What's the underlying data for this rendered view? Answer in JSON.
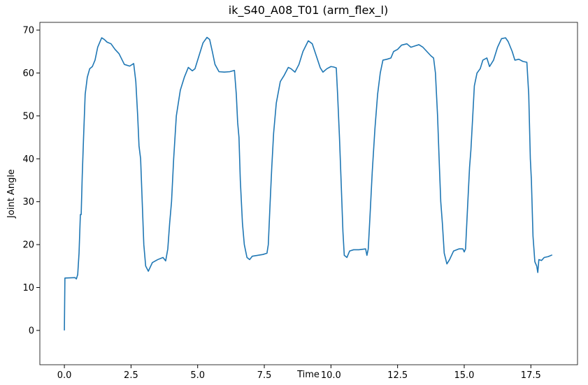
{
  "chart_data": {
    "type": "line",
    "title": "ik_S40_A08_T01 (arm_flex_l)",
    "x_label": "Time",
    "y_label": "Joint Angle",
    "x": [
      0,
      0.02,
      0.4,
      0.45,
      0.5,
      0.55,
      0.6,
      0.63,
      0.67,
      0.72,
      0.78,
      0.86,
      0.95,
      1.05,
      1.15,
      1.25,
      1.4,
      1.5,
      1.6,
      1.75,
      1.9,
      2.05,
      2.25,
      2.45,
      2.6,
      2.68,
      2.75,
      2.8,
      2.86,
      2.92,
      2.98,
      3.05,
      3.15,
      3.3,
      3.5,
      3.7,
      3.8,
      3.88,
      3.95,
      4.02,
      4.1,
      4.2,
      4.35,
      4.5,
      4.65,
      4.8,
      4.9,
      5.05,
      5.2,
      5.35,
      5.45,
      5.55,
      5.65,
      5.8,
      6.0,
      6.2,
      6.38,
      6.45,
      6.5,
      6.55,
      6.6,
      6.68,
      6.75,
      6.85,
      6.95,
      7.05,
      7.25,
      7.45,
      7.6,
      7.65,
      7.72,
      7.78,
      7.85,
      7.95,
      8.1,
      8.25,
      8.4,
      8.5,
      8.65,
      8.8,
      8.95,
      9.15,
      9.3,
      9.45,
      9.6,
      9.7,
      9.85,
      10.0,
      10.1,
      10.2,
      10.25,
      10.32,
      10.38,
      10.45,
      10.5,
      10.6,
      10.7,
      10.85,
      11.05,
      11.3,
      11.35,
      11.4,
      11.46,
      11.55,
      11.65,
      11.75,
      11.85,
      11.95,
      12.1,
      12.25,
      12.35,
      12.5,
      12.65,
      12.85,
      13.0,
      13.15,
      13.3,
      13.45,
      13.6,
      13.75,
      13.85,
      13.92,
      14.0,
      14.07,
      14.12,
      14.18,
      14.25,
      14.35,
      14.45,
      14.6,
      14.8,
      14.95,
      15.0,
      15.05,
      15.12,
      15.2,
      15.25,
      15.32,
      15.38,
      15.48,
      15.6,
      15.7,
      15.85,
      15.95,
      16.1,
      16.25,
      16.4,
      16.55,
      16.65,
      16.8,
      16.9,
      17.05,
      17.2,
      17.35,
      17.42,
      17.48,
      17.52,
      17.58,
      17.65,
      17.72,
      17.76,
      17.8,
      17.9,
      18.0,
      18.15,
      18.3
    ],
    "series": [
      {
        "color": "#1f77b4",
        "values": [
          0,
          12.2,
          12.3,
          12,
          13,
          18,
          27,
          27,
          36,
          45,
          55,
          59,
          61,
          61.5,
          63,
          66,
          68.2,
          67.8,
          67.2,
          66.8,
          65.5,
          64.5,
          62,
          61.6,
          62.2,
          58,
          50,
          43,
          40,
          30,
          20,
          15,
          13.8,
          15.8,
          16.5,
          17,
          16.2,
          19,
          25,
          30,
          40,
          50,
          56,
          59,
          61.3,
          60.5,
          61,
          64,
          67,
          68.3,
          67.8,
          65,
          62,
          60.3,
          60.2,
          60.3,
          60.6,
          55,
          48.5,
          45,
          35,
          25,
          20,
          17,
          16.5,
          17.3,
          17.5,
          17.7,
          18,
          20,
          30,
          38,
          46,
          53,
          58,
          59.5,
          61.3,
          61,
          60.2,
          62,
          65,
          67.5,
          66.8,
          64,
          61.2,
          60.2,
          61,
          61.5,
          61.4,
          61.2,
          55,
          45,
          35,
          23,
          17.5,
          17,
          18.5,
          18.8,
          18.8,
          19,
          17.5,
          19,
          26,
          37,
          47,
          55,
          60,
          63,
          63.2,
          63.5,
          65,
          65.5,
          66.5,
          66.8,
          66,
          66.3,
          66.6,
          66,
          65,
          64,
          63.5,
          60,
          50,
          38,
          30,
          25,
          18,
          15.5,
          16.5,
          18.5,
          19,
          19,
          18.3,
          19,
          28,
          38,
          42,
          50,
          57,
          60,
          61,
          63,
          63.5,
          61.5,
          63,
          66,
          68,
          68.2,
          67.3,
          65,
          63,
          63.2,
          62.7,
          62.5,
          55,
          40,
          35,
          22,
          16,
          15,
          13.5,
          16.5,
          16.3,
          17,
          17.2,
          17.6
        ]
      }
    ],
    "xlim": [
      -0.92,
      19.25
    ],
    "ylim": [
      -8,
      71.8
    ],
    "xticks": [
      {
        "value": 0,
        "label": "0.0"
      },
      2.5,
      {
        "value": 5,
        "label": "5.0"
      },
      7.5,
      {
        "value": 10,
        "label": "10.0"
      },
      12.5,
      {
        "value": 15,
        "label": "15.0"
      },
      17.5
    ],
    "yticks": [
      0,
      10,
      20,
      30,
      40,
      50,
      60,
      70
    ]
  }
}
